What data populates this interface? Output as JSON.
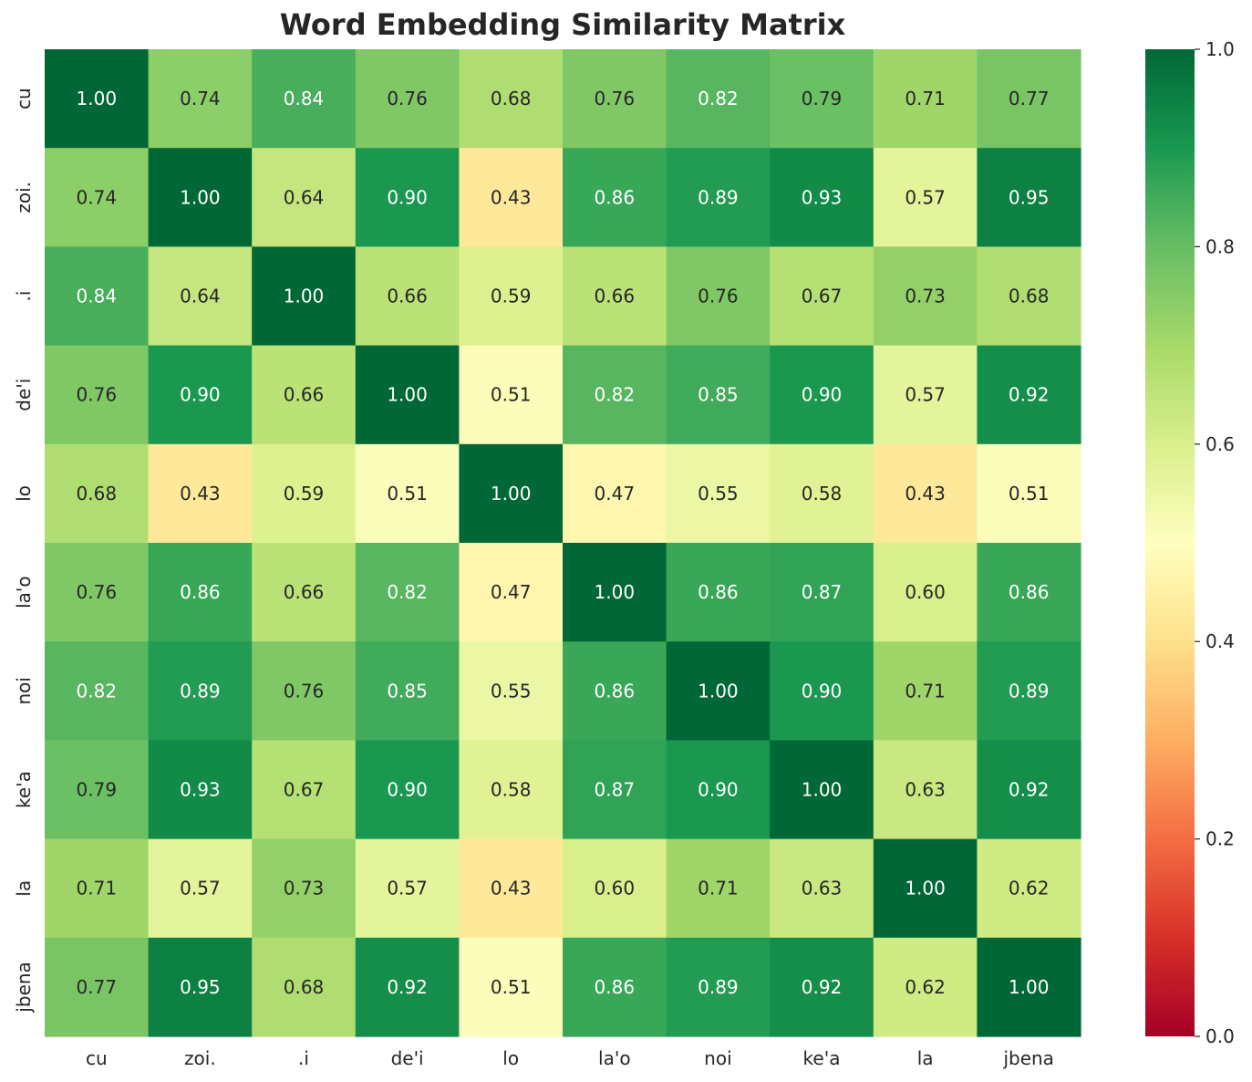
{
  "chart_data": {
    "type": "heatmap",
    "title": "Word Embedding Similarity Matrix",
    "xlabel": "",
    "ylabel": "",
    "x_labels": [
      "cu",
      "zoi.",
      ".i",
      "de'i",
      "lo",
      "la'o",
      "noi",
      "ke'a",
      "la",
      "jbena"
    ],
    "y_labels": [
      "cu",
      "zoi.",
      ".i",
      "de'i",
      "lo",
      "la'o",
      "noi",
      "ke'a",
      "la",
      "jbena"
    ],
    "values": [
      [
        1.0,
        0.74,
        0.84,
        0.76,
        0.68,
        0.76,
        0.82,
        0.79,
        0.71,
        0.77
      ],
      [
        0.74,
        1.0,
        0.64,
        0.9,
        0.43,
        0.86,
        0.89,
        0.93,
        0.57,
        0.95
      ],
      [
        0.84,
        0.64,
        1.0,
        0.66,
        0.59,
        0.66,
        0.76,
        0.67,
        0.73,
        0.68
      ],
      [
        0.76,
        0.9,
        0.66,
        1.0,
        0.51,
        0.82,
        0.85,
        0.9,
        0.57,
        0.92
      ],
      [
        0.68,
        0.43,
        0.59,
        0.51,
        1.0,
        0.47,
        0.55,
        0.58,
        0.43,
        0.51
      ],
      [
        0.76,
        0.86,
        0.66,
        0.82,
        0.47,
        1.0,
        0.86,
        0.87,
        0.6,
        0.86
      ],
      [
        0.82,
        0.89,
        0.76,
        0.85,
        0.55,
        0.86,
        1.0,
        0.9,
        0.71,
        0.89
      ],
      [
        0.79,
        0.93,
        0.67,
        0.9,
        0.58,
        0.87,
        0.9,
        1.0,
        0.63,
        0.92
      ],
      [
        0.71,
        0.57,
        0.73,
        0.57,
        0.43,
        0.6,
        0.71,
        0.63,
        1.0,
        0.62
      ],
      [
        0.77,
        0.95,
        0.68,
        0.92,
        0.51,
        0.86,
        0.89,
        0.92,
        0.62,
        1.0
      ]
    ],
    "value_format": "2 decimals",
    "colormap": "RdYlGn",
    "vmin": 0.0,
    "vmax": 1.0,
    "colorbar_ticks": [
      "0.0",
      "0.2",
      "0.4",
      "0.6",
      "0.8",
      "1.0"
    ],
    "colorbar_tick_values": [
      0.0,
      0.2,
      0.4,
      0.6,
      0.8,
      1.0
    ],
    "legend_placement": "right",
    "grid": false
  }
}
